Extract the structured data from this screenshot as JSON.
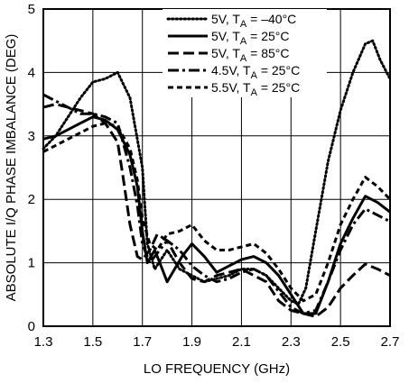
{
  "chart_data": {
    "type": "line",
    "title": "",
    "xlabel": "LO FREQUENCY (GHz)",
    "ylabel": "ABSOLUTE I/Q PHASE IMBALANCE (DEG)",
    "xlim": [
      1.3,
      2.7
    ],
    "ylim": [
      0,
      5
    ],
    "xticks": [
      "1.3",
      "1.5",
      "1.7",
      "1.9",
      "2.1",
      "2.3",
      "2.5",
      "2.7"
    ],
    "yticks": [
      "0",
      "1",
      "2",
      "3",
      "4",
      "5"
    ],
    "grid": true,
    "legend_position": "top-right",
    "series": [
      {
        "name": "5V, T",
        "name_sub": "A",
        "name_suffix": " = –40°C",
        "dash": "dotted",
        "x": [
          1.3,
          1.35,
          1.4,
          1.45,
          1.5,
          1.55,
          1.6,
          1.65,
          1.7,
          1.72,
          1.75,
          1.8,
          1.85,
          1.9,
          1.95,
          2.0,
          2.05,
          2.1,
          2.15,
          2.2,
          2.25,
          2.3,
          2.33,
          2.36,
          2.4,
          2.45,
          2.5,
          2.55,
          2.6,
          2.63,
          2.66,
          2.7
        ],
        "y": [
          2.8,
          3.0,
          3.3,
          3.6,
          3.85,
          3.9,
          4.0,
          3.6,
          2.5,
          1.3,
          0.9,
          1.2,
          0.9,
          0.8,
          0.7,
          0.75,
          0.8,
          0.9,
          0.9,
          0.8,
          0.6,
          0.4,
          0.35,
          0.6,
          1.5,
          2.6,
          3.4,
          4.0,
          4.45,
          4.5,
          4.2,
          3.9
        ]
      },
      {
        "name": "5V, T",
        "name_sub": "A",
        "name_suffix": " = 25°C",
        "dash": "solid",
        "x": [
          1.3,
          1.35,
          1.4,
          1.45,
          1.5,
          1.55,
          1.6,
          1.65,
          1.68,
          1.7,
          1.72,
          1.75,
          1.78,
          1.8,
          1.83,
          1.86,
          1.9,
          1.95,
          2.0,
          2.05,
          2.1,
          2.15,
          2.2,
          2.25,
          2.3,
          2.35,
          2.4,
          2.45,
          2.5,
          2.55,
          2.6,
          2.65,
          2.7
        ],
        "y": [
          2.95,
          3.0,
          3.1,
          3.2,
          3.3,
          3.25,
          3.1,
          2.7,
          2.2,
          1.5,
          1.0,
          1.2,
          0.9,
          0.7,
          0.9,
          1.1,
          1.3,
          1.1,
          0.85,
          0.95,
          1.05,
          1.1,
          1.0,
          0.8,
          0.5,
          0.2,
          0.2,
          0.7,
          1.3,
          1.7,
          2.05,
          1.95,
          1.8
        ]
      },
      {
        "name": "5V, T",
        "name_sub": "A",
        "name_suffix": " = 85°C",
        "dash": "dashed",
        "x": [
          1.3,
          1.35,
          1.4,
          1.45,
          1.5,
          1.55,
          1.6,
          1.62,
          1.65,
          1.68,
          1.7,
          1.73,
          1.76,
          1.8,
          1.85,
          1.9,
          1.95,
          2.0,
          2.05,
          2.1,
          2.15,
          2.2,
          2.25,
          2.3,
          2.35,
          2.4,
          2.45,
          2.5,
          2.55,
          2.6,
          2.65,
          2.7
        ],
        "y": [
          3.45,
          3.5,
          3.45,
          3.4,
          3.35,
          3.2,
          2.9,
          2.4,
          1.6,
          1.1,
          1.05,
          1.2,
          1.45,
          1.35,
          1.0,
          0.75,
          0.7,
          0.8,
          0.85,
          0.9,
          0.8,
          0.7,
          0.4,
          0.25,
          0.2,
          0.15,
          0.3,
          0.6,
          0.8,
          0.98,
          0.9,
          0.8
        ]
      },
      {
        "name": "4.5V, T",
        "name_sub": "A",
        "name_suffix": " = 25°C",
        "dash": "dashdot",
        "x": [
          1.3,
          1.35,
          1.4,
          1.45,
          1.5,
          1.55,
          1.6,
          1.65,
          1.68,
          1.7,
          1.73,
          1.76,
          1.8,
          1.85,
          1.9,
          1.95,
          2.0,
          2.05,
          2.1,
          2.15,
          2.2,
          2.25,
          2.3,
          2.35,
          2.4,
          2.45,
          2.5,
          2.55,
          2.6,
          2.65,
          2.7
        ],
        "y": [
          3.65,
          3.55,
          3.45,
          3.35,
          3.35,
          3.3,
          3.2,
          2.5,
          1.9,
          1.3,
          1.0,
          1.15,
          1.35,
          1.2,
          0.95,
          0.8,
          0.7,
          0.75,
          0.85,
          0.9,
          0.8,
          0.55,
          0.3,
          0.2,
          0.25,
          0.7,
          1.2,
          1.6,
          1.85,
          1.75,
          1.65
        ]
      },
      {
        "name": "5.5V, T",
        "name_sub": "A",
        "name_suffix": " = 25°C",
        "dash": "shortdash",
        "x": [
          1.3,
          1.35,
          1.4,
          1.45,
          1.5,
          1.55,
          1.6,
          1.65,
          1.68,
          1.7,
          1.73,
          1.76,
          1.8,
          1.85,
          1.9,
          1.95,
          2.0,
          2.05,
          2.1,
          2.15,
          2.2,
          2.25,
          2.3,
          2.35,
          2.4,
          2.45,
          2.5,
          2.55,
          2.6,
          2.65,
          2.7
        ],
        "y": [
          2.75,
          2.85,
          2.95,
          3.05,
          3.15,
          3.2,
          3.15,
          2.8,
          2.3,
          1.7,
          1.3,
          1.2,
          1.45,
          1.5,
          1.6,
          1.35,
          1.2,
          1.2,
          1.25,
          1.3,
          1.15,
          0.9,
          0.6,
          0.4,
          0.5,
          1.0,
          1.6,
          2.0,
          2.35,
          2.2,
          2.0
        ]
      }
    ]
  }
}
